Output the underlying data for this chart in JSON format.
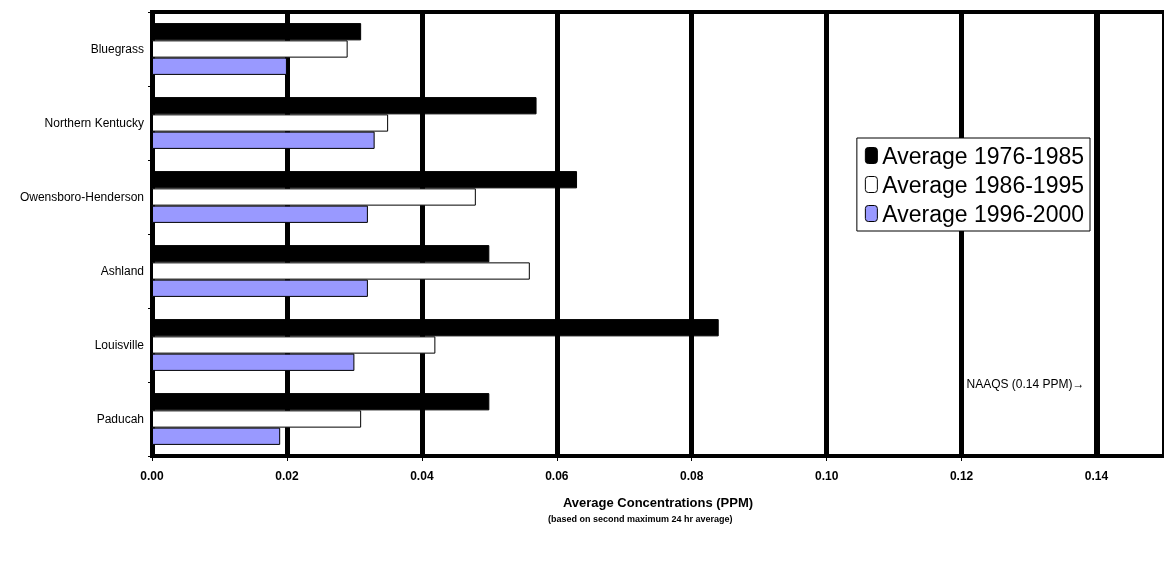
{
  "chart_data": {
    "type": "bar",
    "orientation": "horizontal",
    "categories": [
      "Bluegrass",
      "Northern Kentucky",
      "Owensboro-Henderson",
      "Ashland",
      "Louisville",
      "Paducah"
    ],
    "series": [
      {
        "name": "Average 1976-1985",
        "color": "#000000",
        "values": [
          0.031,
          0.057,
          0.063,
          0.05,
          0.084,
          0.05
        ]
      },
      {
        "name": "Average 1986-1995",
        "color": "#ffffff",
        "values": [
          0.029,
          0.035,
          0.048,
          0.056,
          0.042,
          0.031
        ]
      },
      {
        "name": "Average 1996-2000",
        "color": "#9999ff",
        "values": [
          0.02,
          0.033,
          0.032,
          0.032,
          0.03,
          0.019
        ]
      }
    ],
    "xlabel": "Average Concentrations (PPM)",
    "annotations": [
      "(based on second maximum 24 hr average)"
    ],
    "xlim": [
      0,
      0.15
    ],
    "xticks": [
      {
        "value": 0,
        "label": "0.00"
      },
      {
        "value": 0.02,
        "label": "0.02"
      },
      {
        "value": 0.04,
        "label": "0.04"
      },
      {
        "value": 0.06,
        "label": "0.06"
      },
      {
        "value": 0.08,
        "label": "0.08"
      },
      {
        "value": 0.1,
        "label": "0.10"
      },
      {
        "value": 0.12,
        "label": "0.12"
      },
      {
        "value": 0.14,
        "label": "0.14"
      }
    ],
    "ref_lines": [
      {
        "axis": "x",
        "value": 0.14,
        "label": "NAAQS (0.14 PPM)→"
      }
    ],
    "grid": "x",
    "legend": "right"
  }
}
